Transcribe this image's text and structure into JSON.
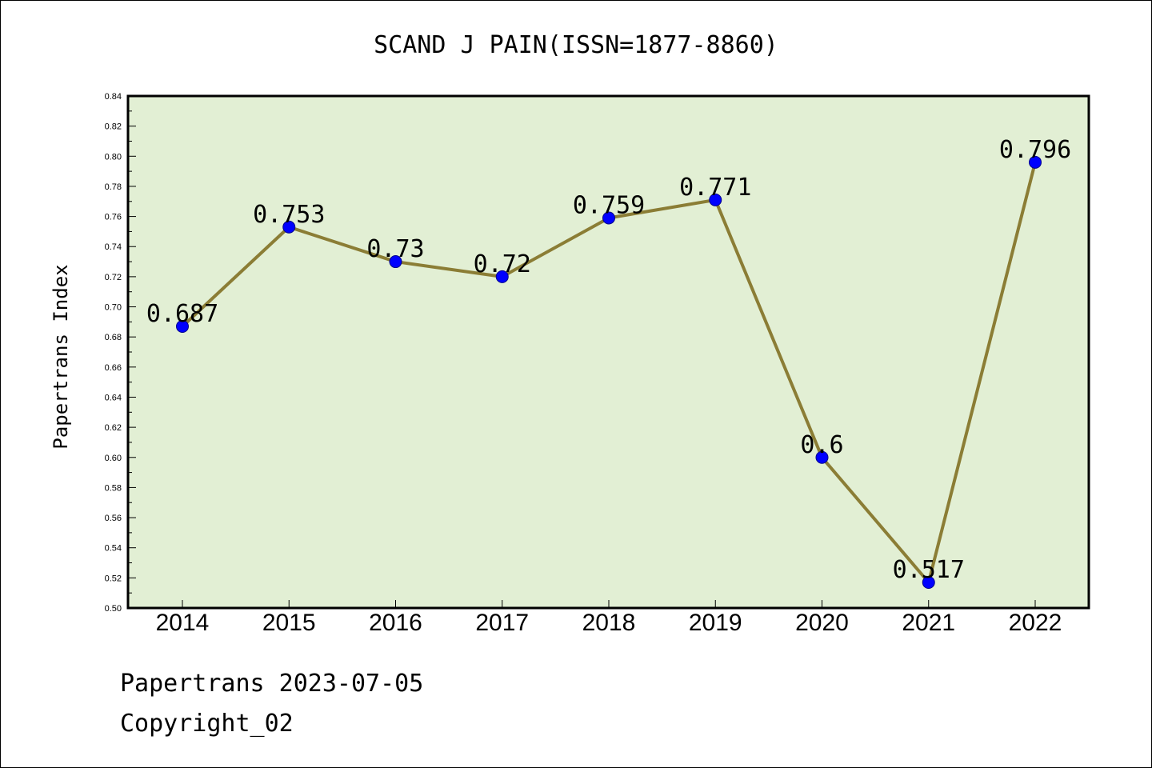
{
  "chart_data": {
    "type": "line",
    "title": "SCAND J PAIN(ISSN=1877-8860)",
    "xlabel": "",
    "ylabel": "Papertrans Index",
    "x": [
      "2014",
      "2015",
      "2016",
      "2017",
      "2018",
      "2019",
      "2020",
      "2021",
      "2022"
    ],
    "series": [
      {
        "values": [
          0.687,
          0.753,
          0.73,
          0.72,
          0.759,
          0.771,
          0.6,
          0.517,
          0.796
        ],
        "labels": [
          "0.687",
          "0.753",
          "0.73",
          "0.72",
          "0.759",
          "0.771",
          "0.6",
          "0.517",
          "0.796"
        ]
      }
    ],
    "ylim": [
      0.5,
      0.84
    ],
    "yticks": [
      "0.50",
      "0.52",
      "0.54",
      "0.56",
      "0.58",
      "0.60",
      "0.62",
      "0.64",
      "0.66",
      "0.68",
      "0.70",
      "0.72",
      "0.74",
      "0.76",
      "0.78",
      "0.80",
      "0.82",
      "0.84"
    ],
    "grid": false,
    "colors": {
      "plot_background": "#e2efd4",
      "line": "#8b7d35",
      "marker": "#0000ff"
    }
  },
  "footer": {
    "line1": "Papertrans 2023-07-05",
    "line2": "Copyright_02"
  }
}
